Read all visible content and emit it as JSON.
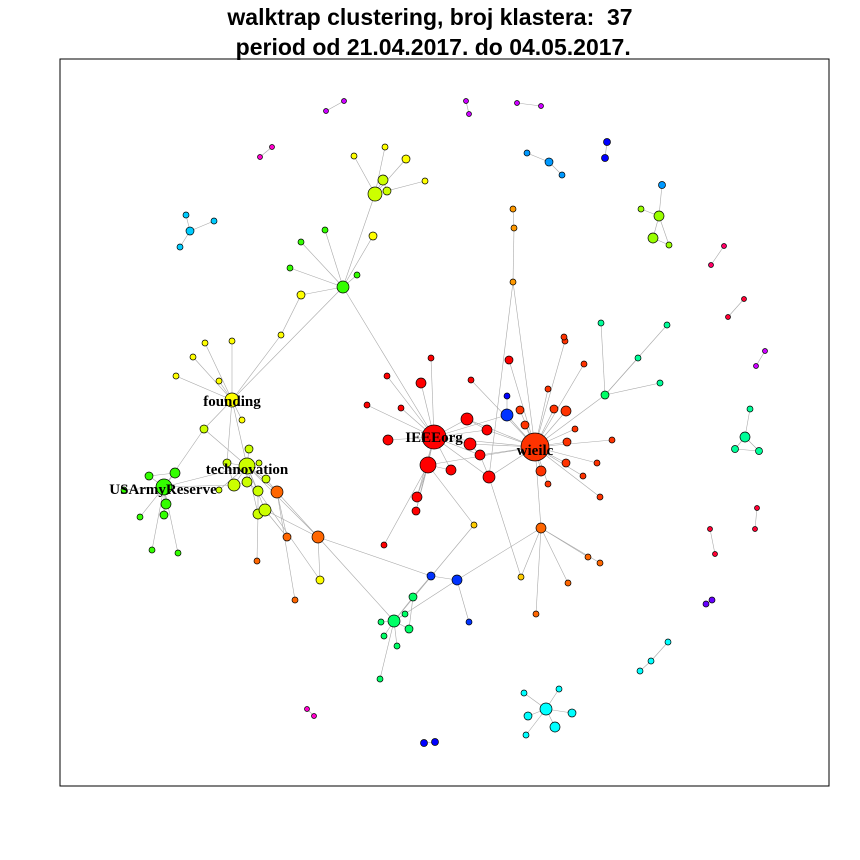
{
  "title": {
    "line1": "walktrap clustering, broj klastera:  37",
    "line2": " period od 21.04.2017. do 04.05.2017."
  },
  "labels": {
    "founding": "founding",
    "technovation": "technovation",
    "usarmyreserve": "USArmyReserve",
    "ieeeorg": "IEEEorg",
    "wieilc": "wieilc"
  },
  "colors": {
    "red": "#ff0000",
    "red_orange": "#ff3300",
    "orange": "#ff6600",
    "amber": "#ff9900",
    "yellow_orange": "#ffcc00",
    "yellow": "#ffff00",
    "yellow_green": "#ccff00",
    "light_green": "#99ff00",
    "green": "#33ff00",
    "spring_green": "#00ff66",
    "teal_green": "#00ff99",
    "cyan": "#00ffff",
    "sky": "#00ccff",
    "azure": "#0099ff",
    "blue": "#0033ff",
    "deep_blue": "#0000ff",
    "violet": "#6600ff",
    "purple": "#cc00ff",
    "magenta": "#ff00cc",
    "pink": "#ff0066",
    "crimson": "#ff0033",
    "edge": "#a9a9a9",
    "frame": "#000000"
  }
}
